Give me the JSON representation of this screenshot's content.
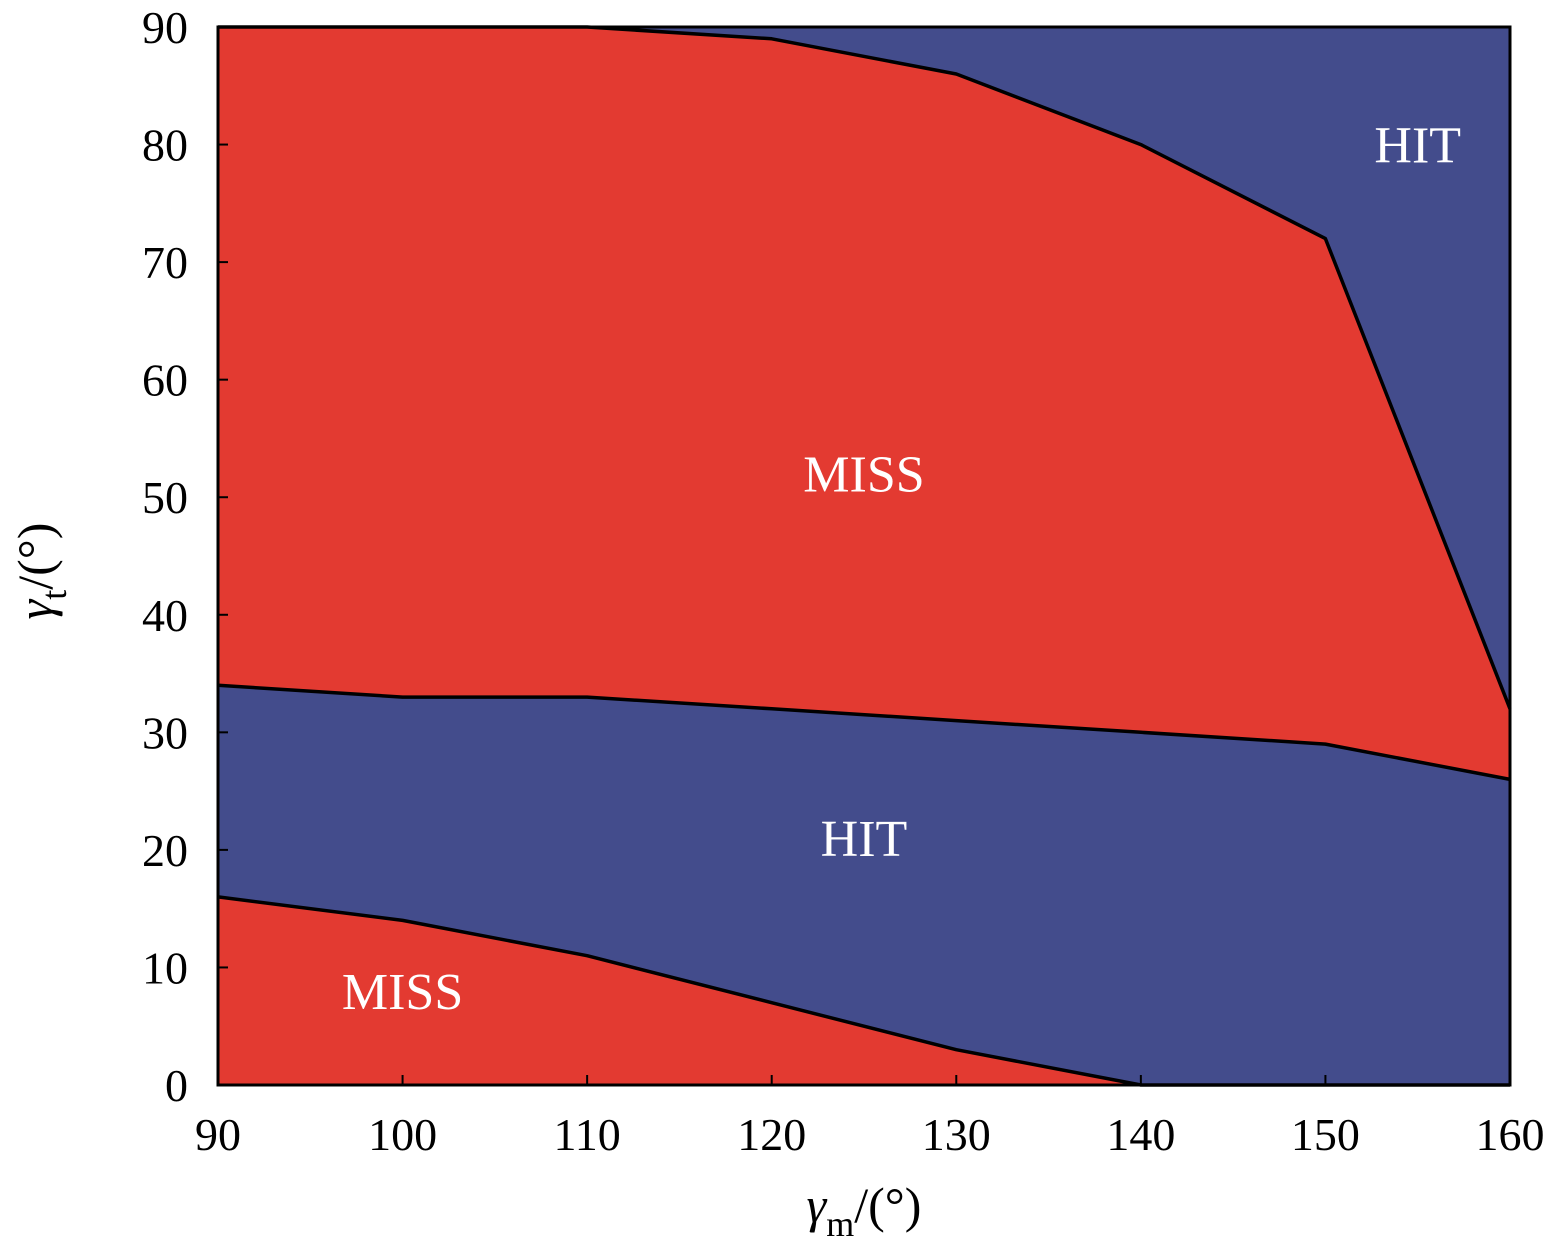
{
  "chart_data": {
    "type": "area",
    "xlim": [
      90,
      160
    ],
    "ylim": [
      0,
      90
    ],
    "x_ticks": [
      "90",
      "100",
      "110",
      "120",
      "130",
      "140",
      "150",
      "160"
    ],
    "y_ticks": [
      "0",
      "10",
      "20",
      "30",
      "40",
      "50",
      "60",
      "70",
      "80",
      "90"
    ],
    "xlabel": {
      "symbol": "γ",
      "subscript": "m",
      "unit": "/(°)"
    },
    "ylabel": {
      "symbol": "γ",
      "subscript": "t",
      "unit": "/(°)"
    },
    "grid": false,
    "colors": {
      "hit": "#434c8c",
      "miss": "#e33a31",
      "boundary": "#000000"
    },
    "boundaries": [
      {
        "x": [
          90,
          100,
          110,
          120,
          130,
          140,
          150,
          160
        ],
        "y": [
          16,
          14,
          11,
          7,
          3,
          0,
          0,
          0
        ]
      },
      {
        "x": [
          90,
          100,
          110,
          120,
          130,
          140,
          150,
          160
        ],
        "y": [
          34,
          33,
          33,
          32,
          31,
          30,
          29,
          26
        ]
      },
      {
        "x": [
          90,
          110,
          120,
          130,
          140,
          150,
          160
        ],
        "y": [
          90,
          90,
          89,
          86,
          80,
          72,
          32
        ]
      }
    ],
    "regions": [
      {
        "label": "MISS",
        "x": 100,
        "y": 8
      },
      {
        "label": "HIT",
        "x": 125,
        "y": 21
      },
      {
        "label": "MISS",
        "x": 125,
        "y": 52
      },
      {
        "label": "HIT",
        "x": 155,
        "y": 80
      }
    ]
  }
}
